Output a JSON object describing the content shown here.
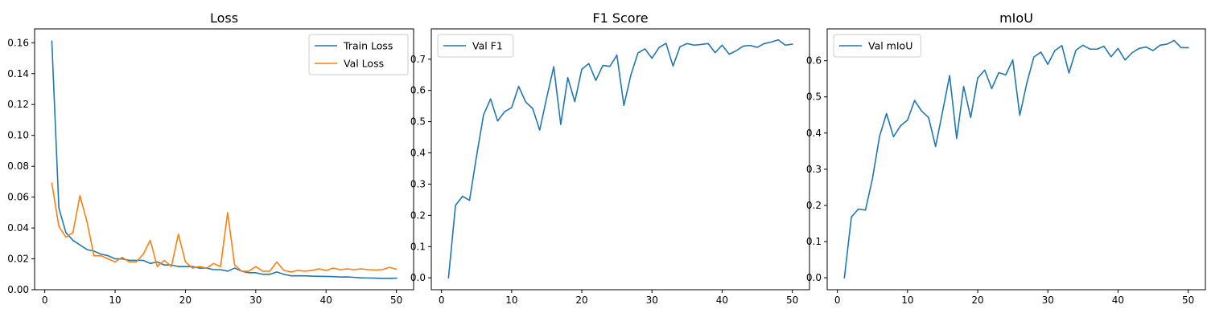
{
  "chart_data": [
    {
      "type": "line",
      "title": "Loss",
      "xlim": [
        -1.45,
        52.45
      ],
      "ylim": [
        0,
        0.169
      ],
      "xticks": [
        0,
        10,
        20,
        30,
        40,
        50
      ],
      "yticks": [
        0.0,
        0.02,
        0.04,
        0.06,
        0.08,
        0.1,
        0.12,
        0.14,
        0.16
      ],
      "ytick_decimals": 2,
      "legend": "top-right",
      "x": [
        1,
        2,
        3,
        4,
        5,
        6,
        7,
        8,
        9,
        10,
        11,
        12,
        13,
        14,
        15,
        16,
        17,
        18,
        19,
        20,
        21,
        22,
        23,
        24,
        25,
        26,
        27,
        28,
        29,
        30,
        31,
        32,
        33,
        34,
        35,
        36,
        37,
        38,
        39,
        40,
        41,
        42,
        43,
        44,
        45,
        46,
        47,
        48,
        49,
        50
      ],
      "series": [
        {
          "name": "Train Loss",
          "color": "#1f77b4",
          "values": [
            0.161,
            0.053,
            0.037,
            0.032,
            0.029,
            0.026,
            0.025,
            0.023,
            0.022,
            0.02,
            0.02,
            0.019,
            0.019,
            0.019,
            0.017,
            0.018,
            0.016,
            0.016,
            0.015,
            0.015,
            0.015,
            0.014,
            0.014,
            0.013,
            0.013,
            0.012,
            0.014,
            0.012,
            0.011,
            0.011,
            0.01,
            0.01,
            0.0115,
            0.01,
            0.009,
            0.009,
            0.009,
            0.0088,
            0.0087,
            0.0086,
            0.0085,
            0.0082,
            0.0083,
            0.008,
            0.0077,
            0.0076,
            0.0075,
            0.0073,
            0.0073,
            0.0075
          ]
        },
        {
          "name": "Val Loss",
          "color": "#ff7f0e",
          "values": [
            0.069,
            0.041,
            0.034,
            0.037,
            0.061,
            0.044,
            0.022,
            0.022,
            0.02,
            0.018,
            0.021,
            0.018,
            0.018,
            0.023,
            0.032,
            0.015,
            0.019,
            0.015,
            0.036,
            0.018,
            0.014,
            0.015,
            0.014,
            0.017,
            0.015,
            0.05,
            0.016,
            0.012,
            0.012,
            0.015,
            0.012,
            0.012,
            0.018,
            0.0125,
            0.0115,
            0.0125,
            0.012,
            0.0125,
            0.0135,
            0.0125,
            0.014,
            0.013,
            0.0135,
            0.013,
            0.0135,
            0.013,
            0.0128,
            0.013,
            0.0145,
            0.0133
          ]
        }
      ]
    },
    {
      "type": "line",
      "title": "F1 Score",
      "xlim": [
        -1.45,
        52.45
      ],
      "ylim": [
        -0.038,
        0.797
      ],
      "xticks": [
        0,
        10,
        20,
        30,
        40,
        50
      ],
      "yticks": [
        0.0,
        0.1,
        0.2,
        0.3,
        0.4,
        0.5,
        0.6,
        0.7
      ],
      "ytick_decimals": 1,
      "legend": "top-left",
      "x": [
        1,
        2,
        3,
        4,
        5,
        6,
        7,
        8,
        9,
        10,
        11,
        12,
        13,
        14,
        15,
        16,
        17,
        18,
        19,
        20,
        21,
        22,
        23,
        24,
        25,
        26,
        27,
        28,
        29,
        30,
        31,
        32,
        33,
        34,
        35,
        36,
        37,
        38,
        39,
        40,
        41,
        42,
        43,
        44,
        45,
        46,
        47,
        48,
        49,
        50
      ],
      "series": [
        {
          "name": "Val F1",
          "color": "#1f77b4",
          "values": [
            0.0,
            0.232,
            0.261,
            0.248,
            0.39,
            0.522,
            0.573,
            0.502,
            0.532,
            0.545,
            0.613,
            0.563,
            0.542,
            0.473,
            0.577,
            0.676,
            0.491,
            0.641,
            0.564,
            0.668,
            0.686,
            0.632,
            0.68,
            0.677,
            0.713,
            0.552,
            0.65,
            0.72,
            0.733,
            0.703,
            0.737,
            0.751,
            0.678,
            0.74,
            0.75,
            0.745,
            0.747,
            0.75,
            0.721,
            0.745,
            0.716,
            0.727,
            0.742,
            0.744,
            0.738,
            0.75,
            0.755,
            0.762,
            0.745,
            0.748
          ]
        }
      ]
    },
    {
      "type": "line",
      "title": "mIoU",
      "xlim": [
        -1.45,
        52.45
      ],
      "ylim": [
        -0.033,
        0.688
      ],
      "xticks": [
        0,
        10,
        20,
        30,
        40,
        50
      ],
      "yticks": [
        0.0,
        0.1,
        0.2,
        0.3,
        0.4,
        0.5,
        0.6
      ],
      "ytick_decimals": 1,
      "legend": "top-left",
      "x": [
        1,
        2,
        3,
        4,
        5,
        6,
        7,
        8,
        9,
        10,
        11,
        12,
        13,
        14,
        15,
        16,
        17,
        18,
        19,
        20,
        21,
        22,
        23,
        24,
        25,
        26,
        27,
        28,
        29,
        30,
        31,
        32,
        33,
        34,
        35,
        36,
        37,
        38,
        39,
        40,
        41,
        42,
        43,
        44,
        45,
        46,
        47,
        48,
        49,
        50
      ],
      "series": [
        {
          "name": "Val mIoU",
          "color": "#1f77b4",
          "values": [
            0.0,
            0.168,
            0.19,
            0.187,
            0.274,
            0.39,
            0.454,
            0.39,
            0.42,
            0.436,
            0.49,
            0.461,
            0.443,
            0.363,
            0.46,
            0.559,
            0.385,
            0.529,
            0.443,
            0.552,
            0.574,
            0.523,
            0.567,
            0.561,
            0.602,
            0.449,
            0.538,
            0.61,
            0.624,
            0.59,
            0.628,
            0.642,
            0.566,
            0.629,
            0.643,
            0.632,
            0.632,
            0.64,
            0.611,
            0.634,
            0.602,
            0.622,
            0.634,
            0.638,
            0.628,
            0.643,
            0.646,
            0.656,
            0.636,
            0.636
          ]
        }
      ]
    }
  ]
}
